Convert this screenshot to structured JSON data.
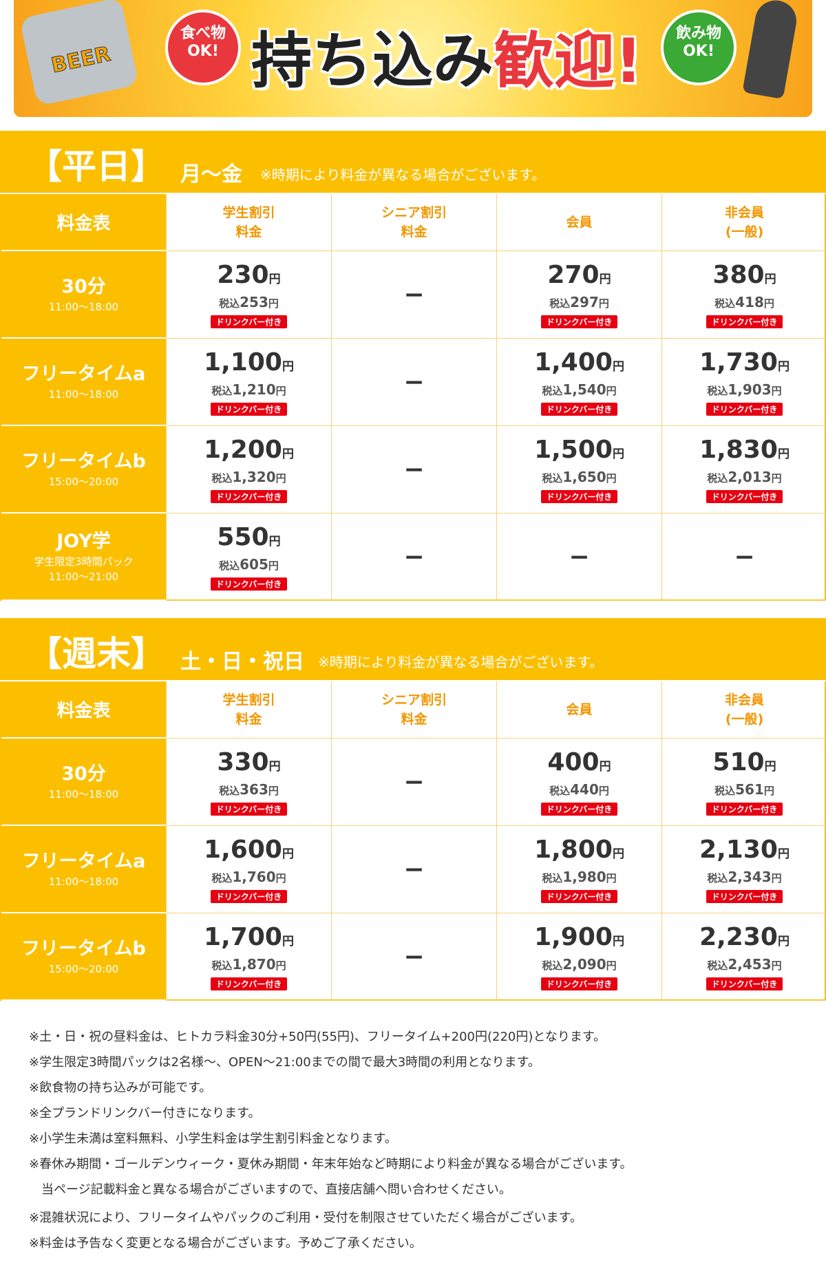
{
  "banner": {
    "food": "食べ物\nOK!",
    "title_a": "持ち込み",
    "title_b": "歓迎!",
    "drink": "飲み物\nOK!",
    "can": "BEER"
  },
  "unit": "円",
  "tax_prefix": "税込",
  "badge": "ドリンクバー付き",
  "dash": "−",
  "sections": [
    {
      "title": "【平日】",
      "days": "月〜金",
      "note": "※時期により料金が異なる場合がございます。",
      "corner": "料金表",
      "columns": [
        [
          "学生割引",
          "料金"
        ],
        [
          "シニア割引",
          "料金"
        ],
        [
          "会員"
        ],
        [
          "非会員",
          "(一般)"
        ]
      ],
      "rows": [
        {
          "name": "30分",
          "times": [
            "11:00〜18:00"
          ],
          "cells": [
            {
              "price": "230",
              "tax": "253"
            },
            null,
            {
              "price": "270",
              "tax": "297"
            },
            {
              "price": "380",
              "tax": "418"
            }
          ]
        },
        {
          "name": "フリータイムa",
          "times": [
            "11:00〜18:00"
          ],
          "cells": [
            {
              "price": "1,100",
              "tax": "1,210"
            },
            null,
            {
              "price": "1,400",
              "tax": "1,540"
            },
            {
              "price": "1,730",
              "tax": "1,903"
            }
          ]
        },
        {
          "name": "フリータイムb",
          "times": [
            "15:00〜20:00"
          ],
          "cells": [
            {
              "price": "1,200",
              "tax": "1,320"
            },
            null,
            {
              "price": "1,500",
              "tax": "1,650"
            },
            {
              "price": "1,830",
              "tax": "2,013"
            }
          ]
        },
        {
          "name": "JOY学",
          "times": [
            "学生限定3時間パック",
            "11:00〜21:00"
          ],
          "cells": [
            {
              "price": "550",
              "tax": "605"
            },
            null,
            null,
            null
          ]
        }
      ]
    },
    {
      "title": "【週末】",
      "days": "土・日・祝日",
      "note": "※時期により料金が異なる場合がございます。",
      "corner": "料金表",
      "columns": [
        [
          "学生割引",
          "料金"
        ],
        [
          "シニア割引",
          "料金"
        ],
        [
          "会員"
        ],
        [
          "非会員",
          "(一般)"
        ]
      ],
      "rows": [
        {
          "name": "30分",
          "times": [
            "11:00〜18:00"
          ],
          "cells": [
            {
              "price": "330",
              "tax": "363"
            },
            null,
            {
              "price": "400",
              "tax": "440"
            },
            {
              "price": "510",
              "tax": "561"
            }
          ]
        },
        {
          "name": "フリータイムa",
          "times": [
            "11:00〜18:00"
          ],
          "cells": [
            {
              "price": "1,600",
              "tax": "1,760"
            },
            null,
            {
              "price": "1,800",
              "tax": "1,980"
            },
            {
              "price": "2,130",
              "tax": "2,343"
            }
          ]
        },
        {
          "name": "フリータイムb",
          "times": [
            "15:00〜20:00"
          ],
          "cells": [
            {
              "price": "1,700",
              "tax": "1,870"
            },
            null,
            {
              "price": "1,900",
              "tax": "2,090"
            },
            {
              "price": "2,230",
              "tax": "2,453"
            }
          ]
        }
      ]
    }
  ],
  "notes": [
    "※土・日・祝の昼料金は、ヒトカラ料金30分+50円(55円)、フリータイム+200円(220円)となります。",
    "※学生限定3時間パックは2名様〜、OPEN〜21:00までの間で最大3時間の利用となります。",
    "※飲食物の持ち込みが可能です。",
    "※全プランドリンクバー付きになります。",
    "※小学生未満は室料無料、小学生料金は学生割引料金となります。",
    "※春休み期間・ゴールデンウィーク・夏休み期間・年末年始など時期により料金が異なる場合がございます。",
    "　当ページ記載料金と異なる場合がございますので、直接店舗へ問い合わせください。",
    "※混雑状況により、フリータイムやパックのご利用・受付を制限させていただく場合がございます。",
    "※料金は予告なく変更となる場合がございます。予めご了承ください。"
  ]
}
